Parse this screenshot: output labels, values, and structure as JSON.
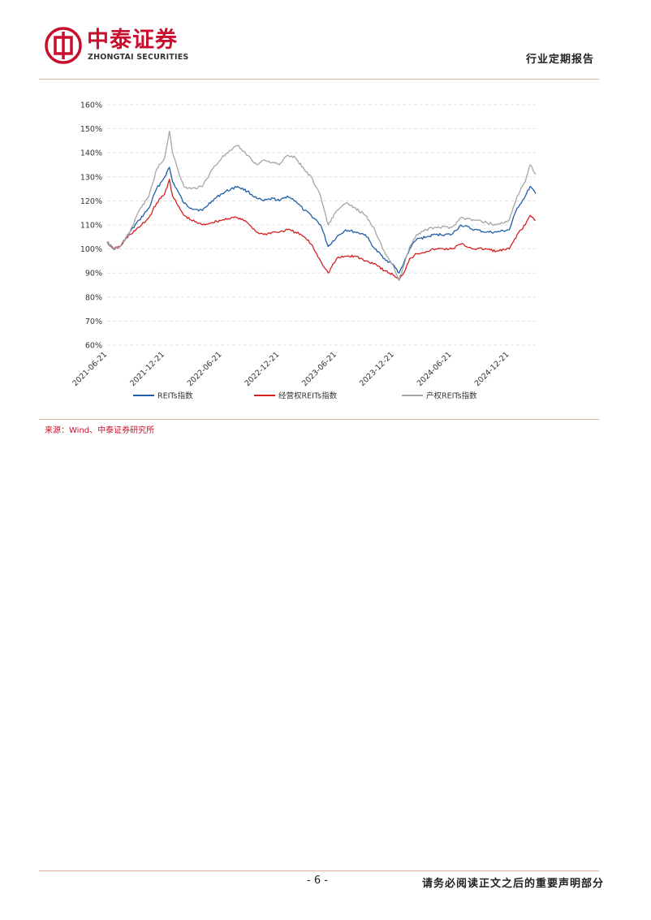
{
  "header": {
    "brand_cn": "中泰证券",
    "brand_en": "ZHONGTAI SECURITIES",
    "report_type": "行业定期报告"
  },
  "chart_data": {
    "type": "line",
    "title": "",
    "xlabel": "",
    "ylabel": "",
    "ylim": [
      0.6,
      1.6
    ],
    "yticks": [
      "160%",
      "150%",
      "140%",
      "130%",
      "120%",
      "110%",
      "100%",
      "90%",
      "80%",
      "70%",
      "60%"
    ],
    "xticks": [
      "2021-06-21",
      "2021-12-21",
      "2022-06-21",
      "2022-12-21",
      "2023-06-21",
      "2023-12-21",
      "2024-06-21",
      "2024-12-21"
    ],
    "x_range": [
      "2021-06-21",
      "2025-03-15"
    ],
    "grid": true,
    "legend_position": "bottom",
    "series": [
      {
        "name": "REITs指数",
        "color": "#1f5ea8",
        "points": [
          [
            "2021-06-21",
            1.03
          ],
          [
            "2021-07-10",
            1.0
          ],
          [
            "2021-08-01",
            1.01
          ],
          [
            "2021-09-01",
            1.07
          ],
          [
            "2021-10-01",
            1.12
          ],
          [
            "2021-11-01",
            1.17
          ],
          [
            "2021-11-25",
            1.25
          ],
          [
            "2021-12-21",
            1.3
          ],
          [
            "2022-01-05",
            1.34
          ],
          [
            "2022-01-15",
            1.28
          ],
          [
            "2022-02-01",
            1.24
          ],
          [
            "2022-02-20",
            1.19
          ],
          [
            "2022-03-15",
            1.17
          ],
          [
            "2022-04-20",
            1.16
          ],
          [
            "2022-05-20",
            1.2
          ],
          [
            "2022-06-21",
            1.23
          ],
          [
            "2022-07-20",
            1.25
          ],
          [
            "2022-08-10",
            1.26
          ],
          [
            "2022-09-10",
            1.24
          ],
          [
            "2022-10-10",
            1.21
          ],
          [
            "2022-11-01",
            1.2
          ],
          [
            "2022-12-01",
            1.21
          ],
          [
            "2022-12-21",
            1.2
          ],
          [
            "2023-01-15",
            1.22
          ],
          [
            "2023-02-10",
            1.2
          ],
          [
            "2023-03-10",
            1.16
          ],
          [
            "2023-04-01",
            1.14
          ],
          [
            "2023-05-01",
            1.1
          ],
          [
            "2023-05-25",
            1.01
          ],
          [
            "2023-06-21",
            1.05
          ],
          [
            "2023-07-20",
            1.08
          ],
          [
            "2023-08-20",
            1.07
          ],
          [
            "2023-09-20",
            1.06
          ],
          [
            "2023-10-20",
            1.0
          ],
          [
            "2023-11-20",
            0.96
          ],
          [
            "2023-12-21",
            0.93
          ],
          [
            "2024-01-05",
            0.9
          ],
          [
            "2024-01-20",
            0.94
          ],
          [
            "2024-02-08",
            1.0
          ],
          [
            "2024-03-01",
            1.04
          ],
          [
            "2024-04-01",
            1.05
          ],
          [
            "2024-05-01",
            1.06
          ],
          [
            "2024-06-21",
            1.06
          ],
          [
            "2024-07-20",
            1.1
          ],
          [
            "2024-09-01",
            1.08
          ],
          [
            "2024-10-10",
            1.07
          ],
          [
            "2024-11-10",
            1.07
          ],
          [
            "2024-12-21",
            1.08
          ],
          [
            "2025-01-15",
            1.17
          ],
          [
            "2025-02-10",
            1.22
          ],
          [
            "2025-02-25",
            1.26
          ],
          [
            "2025-03-15",
            1.23
          ]
        ]
      },
      {
        "name": "经营权REITs指数",
        "color": "#d42020",
        "points": [
          [
            "2021-06-21",
            1.03
          ],
          [
            "2021-07-10",
            1.0
          ],
          [
            "2021-08-01",
            1.01
          ],
          [
            "2021-09-01",
            1.06
          ],
          [
            "2021-10-01",
            1.09
          ],
          [
            "2021-11-01",
            1.13
          ],
          [
            "2021-11-25",
            1.19
          ],
          [
            "2021-12-21",
            1.23
          ],
          [
            "2022-01-05",
            1.29
          ],
          [
            "2022-01-15",
            1.22
          ],
          [
            "2022-02-01",
            1.18
          ],
          [
            "2022-02-20",
            1.14
          ],
          [
            "2022-03-15",
            1.12
          ],
          [
            "2022-04-20",
            1.1
          ],
          [
            "2022-05-20",
            1.11
          ],
          [
            "2022-06-21",
            1.12
          ],
          [
            "2022-07-20",
            1.13
          ],
          [
            "2022-08-10",
            1.13
          ],
          [
            "2022-09-10",
            1.11
          ],
          [
            "2022-10-10",
            1.07
          ],
          [
            "2022-11-01",
            1.06
          ],
          [
            "2022-12-01",
            1.07
          ],
          [
            "2022-12-21",
            1.07
          ],
          [
            "2023-01-15",
            1.08
          ],
          [
            "2023-02-10",
            1.07
          ],
          [
            "2023-03-10",
            1.05
          ],
          [
            "2023-04-01",
            1.02
          ],
          [
            "2023-05-01",
            0.95
          ],
          [
            "2023-05-25",
            0.9
          ],
          [
            "2023-06-21",
            0.96
          ],
          [
            "2023-07-20",
            0.97
          ],
          [
            "2023-08-20",
            0.97
          ],
          [
            "2023-09-20",
            0.95
          ],
          [
            "2023-10-20",
            0.94
          ],
          [
            "2023-11-20",
            0.91
          ],
          [
            "2023-12-21",
            0.89
          ],
          [
            "2024-01-05",
            0.87
          ],
          [
            "2024-01-20",
            0.9
          ],
          [
            "2024-02-08",
            0.96
          ],
          [
            "2024-03-01",
            0.98
          ],
          [
            "2024-04-01",
            0.99
          ],
          [
            "2024-05-01",
            1.0
          ],
          [
            "2024-06-21",
            1.0
          ],
          [
            "2024-07-20",
            1.02
          ],
          [
            "2024-09-01",
            1.0
          ],
          [
            "2024-10-10",
            1.0
          ],
          [
            "2024-11-10",
            0.99
          ],
          [
            "2024-12-21",
            1.0
          ],
          [
            "2025-01-15",
            1.06
          ],
          [
            "2025-02-10",
            1.1
          ],
          [
            "2025-02-25",
            1.14
          ],
          [
            "2025-03-15",
            1.12
          ]
        ]
      },
      {
        "name": "产权REITs指数",
        "color": "#a6a6a6",
        "points": [
          [
            "2021-06-21",
            1.03
          ],
          [
            "2021-07-10",
            1.0
          ],
          [
            "2021-08-01",
            1.01
          ],
          [
            "2021-09-01",
            1.07
          ],
          [
            "2021-10-01",
            1.16
          ],
          [
            "2021-11-01",
            1.22
          ],
          [
            "2021-11-25",
            1.33
          ],
          [
            "2021-12-21",
            1.38
          ],
          [
            "2022-01-05",
            1.49
          ],
          [
            "2022-01-15",
            1.4
          ],
          [
            "2022-02-01",
            1.33
          ],
          [
            "2022-02-20",
            1.26
          ],
          [
            "2022-03-15",
            1.25
          ],
          [
            "2022-04-20",
            1.26
          ],
          [
            "2022-05-20",
            1.33
          ],
          [
            "2022-06-21",
            1.38
          ],
          [
            "2022-07-20",
            1.41
          ],
          [
            "2022-08-10",
            1.43
          ],
          [
            "2022-09-10",
            1.39
          ],
          [
            "2022-10-10",
            1.35
          ],
          [
            "2022-11-01",
            1.37
          ],
          [
            "2022-12-01",
            1.36
          ],
          [
            "2022-12-21",
            1.35
          ],
          [
            "2023-01-15",
            1.39
          ],
          [
            "2023-02-10",
            1.38
          ],
          [
            "2023-03-10",
            1.33
          ],
          [
            "2023-04-01",
            1.3
          ],
          [
            "2023-05-01",
            1.22
          ],
          [
            "2023-05-25",
            1.1
          ],
          [
            "2023-06-21",
            1.16
          ],
          [
            "2023-07-20",
            1.19
          ],
          [
            "2023-08-20",
            1.17
          ],
          [
            "2023-09-20",
            1.14
          ],
          [
            "2023-10-20",
            1.08
          ],
          [
            "2023-11-20",
            0.99
          ],
          [
            "2023-12-21",
            0.92
          ],
          [
            "2024-01-05",
            0.87
          ],
          [
            "2024-01-20",
            0.93
          ],
          [
            "2024-02-08",
            1.01
          ],
          [
            "2024-03-01",
            1.06
          ],
          [
            "2024-04-01",
            1.08
          ],
          [
            "2024-05-01",
            1.09
          ],
          [
            "2024-06-21",
            1.09
          ],
          [
            "2024-07-20",
            1.13
          ],
          [
            "2024-09-01",
            1.12
          ],
          [
            "2024-10-10",
            1.11
          ],
          [
            "2024-11-10",
            1.1
          ],
          [
            "2024-12-21",
            1.12
          ],
          [
            "2025-01-15",
            1.22
          ],
          [
            "2025-02-10",
            1.28
          ],
          [
            "2025-02-25",
            1.35
          ],
          [
            "2025-03-15",
            1.31
          ]
        ]
      }
    ]
  },
  "source_note": "来源：Wind、中泰证券研究所",
  "footer": {
    "page_number": "- 6 -",
    "disclaimer": "请务必阅读正文之后的重要声明部分"
  }
}
